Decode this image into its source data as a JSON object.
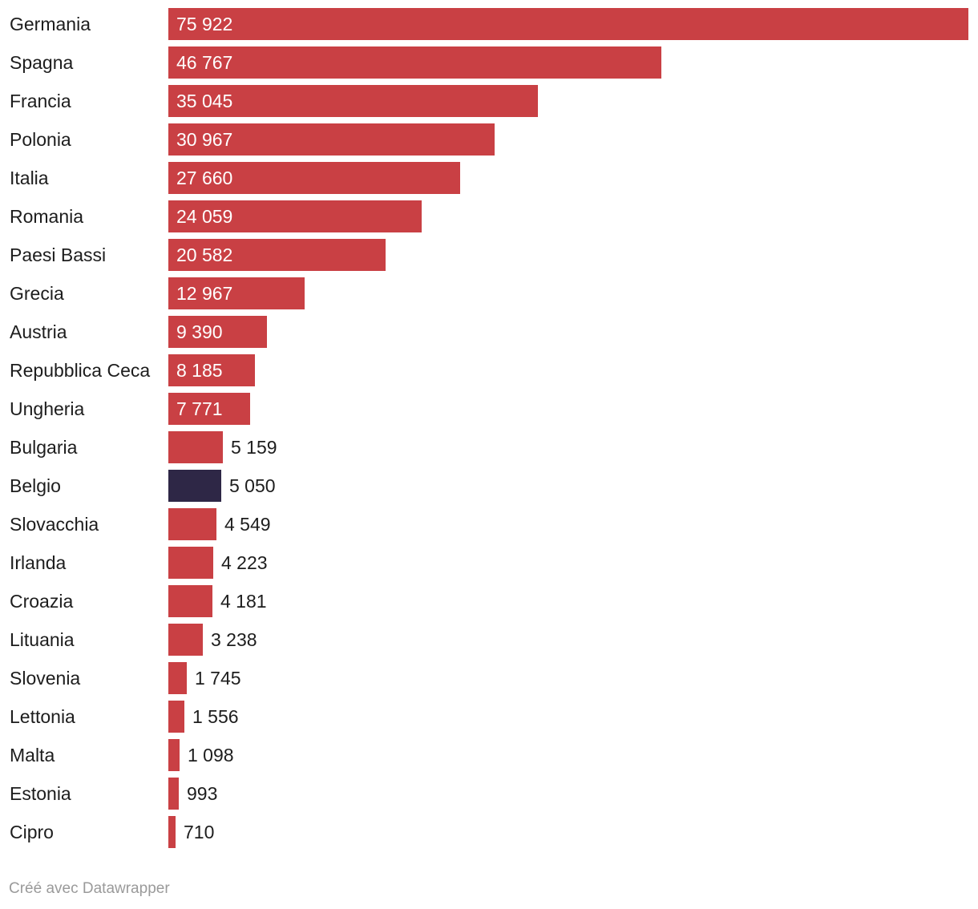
{
  "colors": {
    "default": "#c94044",
    "highlight": "#2e2746"
  },
  "chart_data": {
    "type": "bar",
    "orientation": "horizontal",
    "title": "",
    "xlabel": "",
    "ylabel": "",
    "categories": [
      "Germania",
      "Spagna",
      "Francia",
      "Polonia",
      "Italia",
      "Romania",
      "Paesi Bassi",
      "Grecia",
      "Austria",
      "Repubblica Ceca",
      "Ungheria",
      "Bulgaria",
      "Belgio",
      "Slovacchia",
      "Irlanda",
      "Croazia",
      "Lituania",
      "Slovenia",
      "Lettonia",
      "Malta",
      "Estonia",
      "Cipro"
    ],
    "values": [
      75922,
      46767,
      35045,
      30967,
      27660,
      24059,
      20582,
      12967,
      9390,
      8185,
      7771,
      5159,
      5050,
      4549,
      4223,
      4181,
      3238,
      1745,
      1556,
      1098,
      993,
      710
    ],
    "value_labels": [
      "75 922",
      "46 767",
      "35 045",
      "30 967",
      "27 660",
      "24 059",
      "20 582",
      "12 967",
      "9 390",
      "8 185",
      "7 771",
      "5 159",
      "5 050",
      "4 549",
      "4 223",
      "4 181",
      "3 238",
      "1 745",
      "1 556",
      "1 098",
      "993",
      "710"
    ],
    "highlighted": [
      "Belgio"
    ],
    "xlim": [
      0,
      75922
    ],
    "grid": false,
    "legend": "none"
  },
  "footer": {
    "credit": "Créé avec Datawrapper"
  }
}
